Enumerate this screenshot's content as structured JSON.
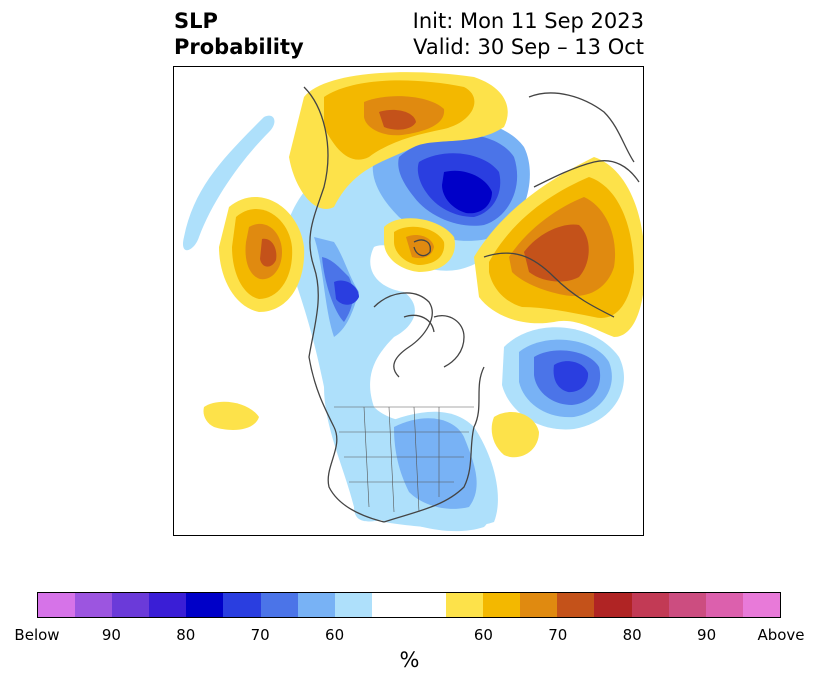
{
  "title": {
    "left_line1": "SLP",
    "left_line2": "Probability",
    "right_line1": "Init: Mon 11 Sep 2023",
    "right_line2": "Valid: 30 Sep – 13 Oct"
  },
  "map": {
    "projection": "polar-stereographic",
    "region": "Northern Hemisphere / North America",
    "colors": {
      "below_90": "#3a1ed6",
      "below_80": "#0000c8",
      "below_70": "#2a3ee0",
      "below_60_dark": "#4b74e8",
      "below_60": "#78b2f5",
      "below_light": "#aee0fb",
      "above_light": "#fde24a",
      "above_60": "#f3b800",
      "above_70": "#e08a10",
      "above_80": "#c4521a",
      "coast": "#444444"
    }
  },
  "colorbar": {
    "colors": [
      "#d673e8",
      "#9c55e0",
      "#6b3ad9",
      "#3a1ed6",
      "#0000c8",
      "#2a3ee0",
      "#4b74e8",
      "#78b2f5",
      "#aee0fb",
      "#ffffff",
      "#ffffff",
      "#fde24a",
      "#f3b800",
      "#e08a10",
      "#c4521a",
      "#b02424",
      "#c23a55",
      "#cc4d80",
      "#dc60ad",
      "#e87ad9"
    ],
    "tick_labels": [
      "Below",
      "90",
      "80",
      "70",
      "60",
      "60",
      "70",
      "80",
      "90",
      "Above"
    ],
    "unit": "%"
  }
}
